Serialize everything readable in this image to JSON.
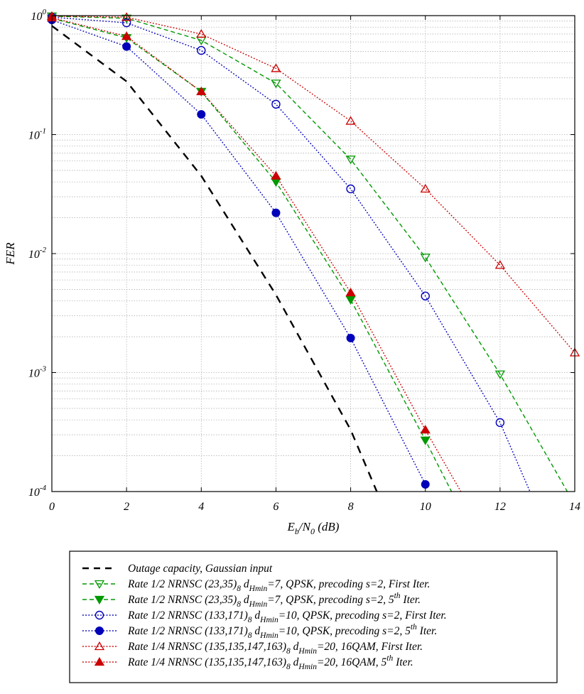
{
  "chart_data": {
    "type": "line",
    "title": "",
    "xlabel": {
      "main": "E",
      "sub": "b",
      "mid": "/N",
      "sub2": "0",
      "tail": " (dB)"
    },
    "ylabel": "FER",
    "xlim": [
      0,
      14
    ],
    "ylim": [
      0.0001,
      1
    ],
    "yscale": "log",
    "grid": true,
    "legend_position": "below",
    "x_ticks": [
      "0",
      "2",
      "4",
      "6",
      "8",
      "10",
      "12",
      "14"
    ],
    "y_ticks": [
      {
        "base": "10",
        "exp": "0"
      },
      {
        "base": "10",
        "exp": "-1"
      },
      {
        "base": "10",
        "exp": "-2"
      },
      {
        "base": "10",
        "exp": "-3"
      },
      {
        "base": "10",
        "exp": "-4"
      }
    ],
    "series": [
      {
        "name": "Outage capacity, Gaussian input",
        "color": "#000000",
        "style": "dashed",
        "marker": "none",
        "x": [
          0,
          2,
          4,
          6,
          8,
          8.7
        ],
        "y": [
          0.82,
          0.28,
          0.045,
          0.0045,
          0.00033,
          0.0001
        ]
      },
      {
        "name": "Rate 1/2 NRNSC (23,35)8 dHmin=7, QPSK, precoding s=2, First Iter.",
        "color": "#009900",
        "style": "dashed",
        "marker": "triangle-down-open",
        "x": [
          0,
          2,
          4,
          6,
          8,
          10,
          12,
          13.8
        ],
        "y": [
          0.99,
          0.95,
          0.62,
          0.27,
          0.062,
          0.0093,
          0.00097,
          0.0001
        ]
      },
      {
        "name": "Rate 1/2 NRNSC (23,35)8 dHmin=7, QPSK, precoding s=2, 5th Iter.",
        "color": "#009900",
        "style": "dashed",
        "marker": "triangle-down-filled",
        "x": [
          0,
          2,
          4,
          6,
          8,
          10,
          10.7
        ],
        "y": [
          0.95,
          0.65,
          0.23,
          0.04,
          0.0041,
          0.00027,
          0.0001
        ]
      },
      {
        "name": "Rate 1/2 NRNSC (133,171)8 dHmin=10, QPSK, precoding s=2, First Iter.",
        "color": "#0000bb",
        "style": "dotted",
        "marker": "circle-open",
        "x": [
          0,
          2,
          4,
          6,
          8,
          10,
          12,
          12.8
        ],
        "y": [
          0.97,
          0.87,
          0.51,
          0.18,
          0.035,
          0.0044,
          0.00038,
          0.0001
        ]
      },
      {
        "name": "Rate 1/2 NRNSC (133,171)8 dHmin=10, QPSK, precoding s=2, 5th Iter.",
        "color": "#0000bb",
        "style": "dotted",
        "marker": "circle-filled",
        "x": [
          0,
          2,
          4,
          6,
          8,
          10
        ],
        "y": [
          0.92,
          0.55,
          0.148,
          0.022,
          0.00195,
          0.000115
        ]
      },
      {
        "name": "Rate 1/4 NRNSC (135,135,147,163)8 dHmin=20, 16QAM, First Iter.",
        "color": "#cc0000",
        "style": "dotted",
        "marker": "triangle-up-open",
        "x": [
          0,
          2,
          4,
          6,
          8,
          10,
          12,
          14
        ],
        "y": [
          0.99,
          0.97,
          0.7,
          0.36,
          0.13,
          0.035,
          0.008,
          0.00147
        ]
      },
      {
        "name": "Rate 1/4 NRNSC (135,135,147,163)8 dHmin=20, 16QAM, 5th Iter.",
        "color": "#cc0000",
        "style": "dotted",
        "marker": "triangle-up-filled",
        "x": [
          0,
          2,
          4,
          6,
          8,
          10,
          10.95
        ],
        "y": [
          0.96,
          0.67,
          0.23,
          0.045,
          0.0047,
          0.00033,
          0.0001
        ]
      }
    ],
    "legend": [
      [
        {
          "t": "Outage capacity, Gaussian input"
        }
      ],
      [
        {
          "t": "Rate 1/2 NRNSC (23,35)"
        },
        {
          "t": "8",
          "s": "sub"
        },
        {
          "t": " d"
        },
        {
          "t": "Hmin",
          "s": "sub"
        },
        {
          "t": "=7, QPSK, precoding s=2, First Iter."
        }
      ],
      [
        {
          "t": "Rate 1/2 NRNSC (23,35)"
        },
        {
          "t": "8",
          "s": "sub"
        },
        {
          "t": " d"
        },
        {
          "t": "Hmin",
          "s": "sub"
        },
        {
          "t": "=7, QPSK, precoding s=2, 5"
        },
        {
          "t": "th",
          "s": "sup"
        },
        {
          "t": " Iter."
        }
      ],
      [
        {
          "t": "Rate 1/2 NRNSC (133,171)"
        },
        {
          "t": "8",
          "s": "sub"
        },
        {
          "t": " d"
        },
        {
          "t": "Hmin",
          "s": "sub"
        },
        {
          "t": "=10, QPSK, precoding s=2, First Iter."
        }
      ],
      [
        {
          "t": "Rate 1/2 NRNSC (133,171)"
        },
        {
          "t": "8",
          "s": "sub"
        },
        {
          "t": " d"
        },
        {
          "t": "Hmin",
          "s": "sub"
        },
        {
          "t": "=10, QPSK, precoding s=2, 5"
        },
        {
          "t": "th",
          "s": "sup"
        },
        {
          "t": " Iter."
        }
      ],
      [
        {
          "t": "Rate 1/4 NRNSC (135,135,147,163)"
        },
        {
          "t": "8",
          "s": "sub"
        },
        {
          "t": " d"
        },
        {
          "t": "Hmin",
          "s": "sub"
        },
        {
          "t": "=20, 16QAM, First Iter."
        }
      ],
      [
        {
          "t": "Rate 1/4 NRNSC (135,135,147,163)"
        },
        {
          "t": "8",
          "s": "sub"
        },
        {
          "t": " d"
        },
        {
          "t": "Hmin",
          "s": "sub"
        },
        {
          "t": "=20, 16QAM, 5"
        },
        {
          "t": "th",
          "s": "sup"
        },
        {
          "t": " Iter."
        }
      ]
    ]
  }
}
